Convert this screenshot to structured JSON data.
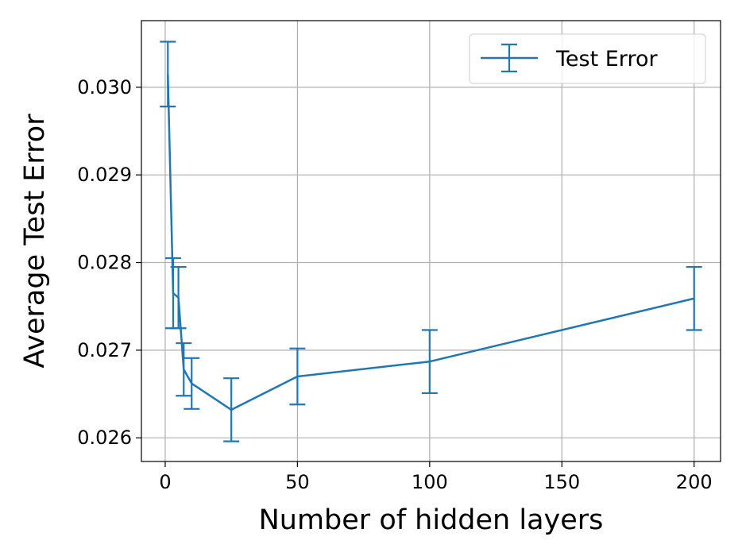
{
  "chart_data": {
    "type": "line",
    "xlabel": "Number of hidden layers",
    "ylabel": "Average Test Error",
    "xlim": [
      -9,
      210
    ],
    "ylim": [
      0.02573,
      0.03076
    ],
    "xticks": [
      0,
      50,
      100,
      150,
      200
    ],
    "xtick_labels": [
      "0",
      "50",
      "100",
      "150",
      "200"
    ],
    "yticks": [
      0.026,
      0.027,
      0.028,
      0.029,
      0.03
    ],
    "ytick_labels": [
      "0.026",
      "0.027",
      "0.028",
      "0.029",
      "0.030"
    ],
    "grid": true,
    "legend_position": "top-right",
    "colors": {
      "series": "#1f77b4",
      "grid": "#b0b0b0",
      "axis": "#000000"
    },
    "series": [
      {
        "name": "Test Error",
        "x": [
          1,
          3,
          5,
          7,
          10,
          25,
          50,
          100,
          200
        ],
        "y": [
          0.03015,
          0.02765,
          0.0276,
          0.02678,
          0.02662,
          0.02632,
          0.0267,
          0.02687,
          0.02759
        ],
        "err": [
          0.00037,
          0.0004,
          0.00035,
          0.0003,
          0.00029,
          0.00036,
          0.00032,
          0.00036,
          0.00036
        ]
      }
    ]
  }
}
